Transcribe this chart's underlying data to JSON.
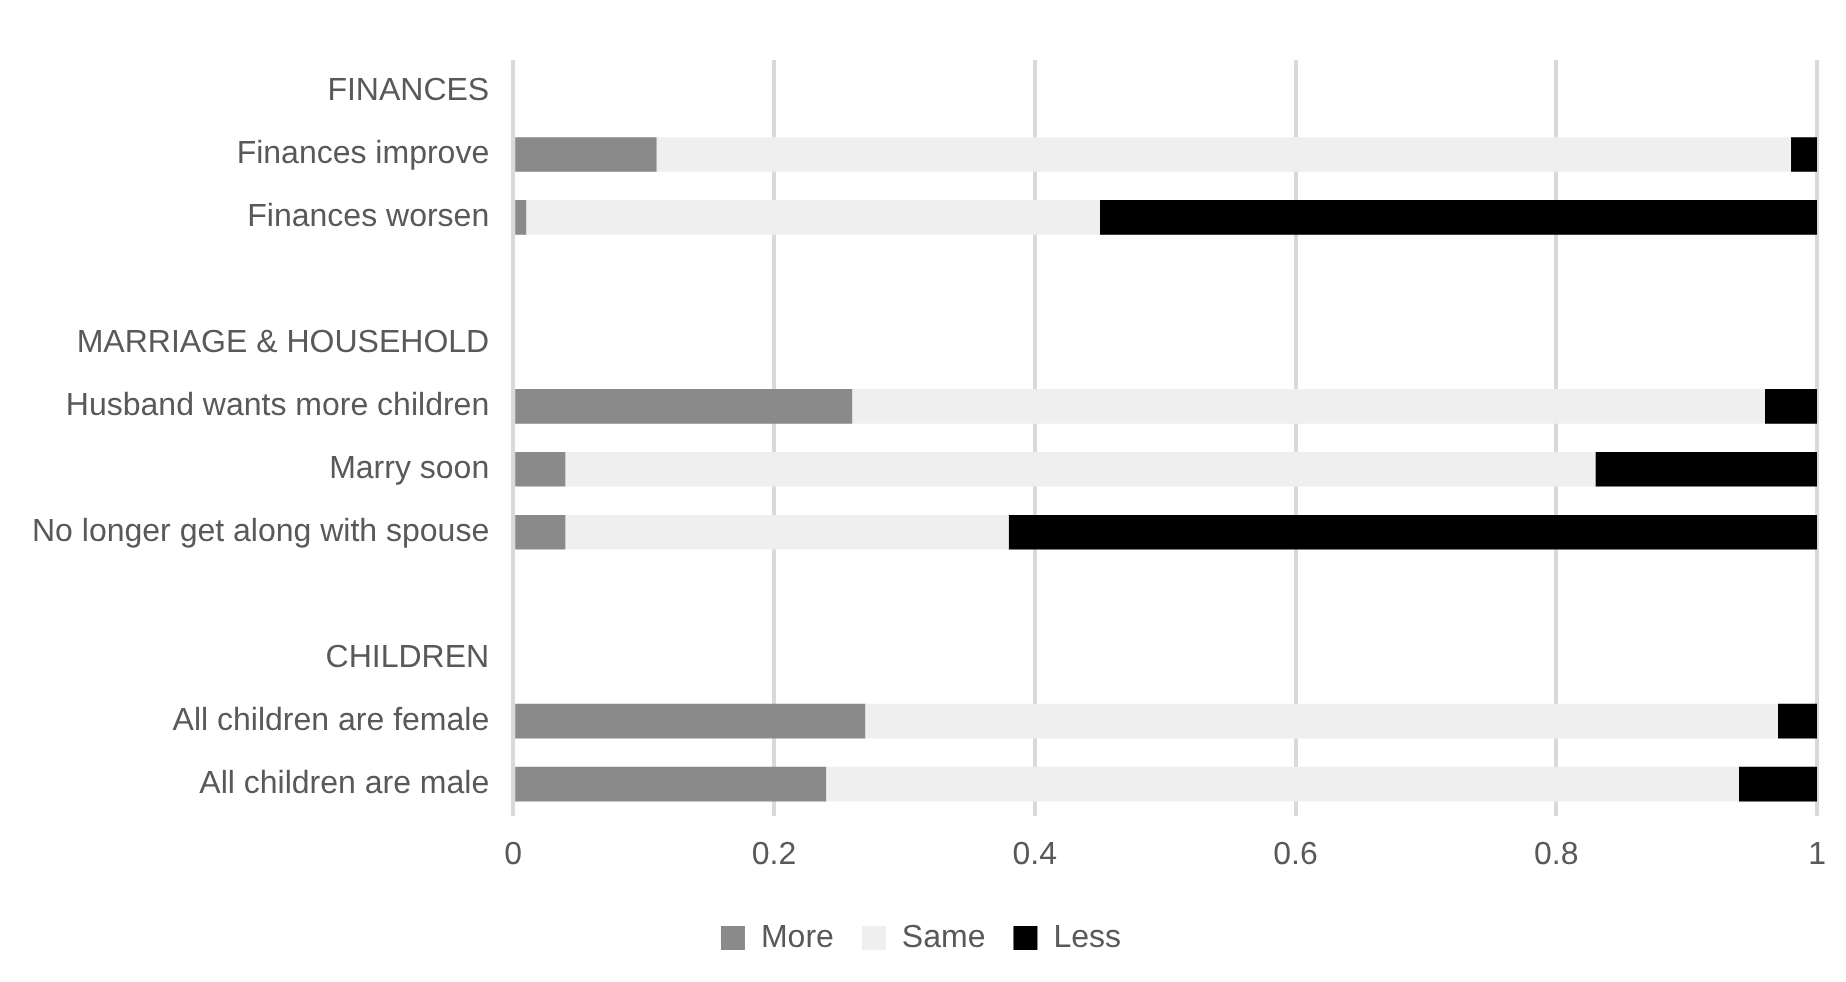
{
  "chart_data": {
    "type": "bar",
    "orientation": "horizontal",
    "stacked": true,
    "categories": [
      "FINANCES",
      "Finances improve",
      "Finances worsen",
      null,
      "MARRIAGE & HOUSEHOLD",
      "Husband wants more children",
      "Marry soon",
      "No longer get along with spouse",
      null,
      "CHILDREN",
      "All children are female",
      "All children are male"
    ],
    "series": [
      {
        "name": "More",
        "color": "#8a8a8a",
        "values": [
          null,
          0.11,
          0.01,
          null,
          null,
          0.26,
          0.04,
          0.04,
          null,
          null,
          0.27,
          0.24
        ]
      },
      {
        "name": "Same",
        "color": "#efefef",
        "values": [
          null,
          0.87,
          0.44,
          null,
          null,
          0.7,
          0.79,
          0.34,
          null,
          null,
          0.7,
          0.7
        ]
      },
      {
        "name": "Less",
        "color": "#000000",
        "values": [
          null,
          0.02,
          0.55,
          null,
          null,
          0.04,
          0.17,
          0.62,
          null,
          null,
          0.03,
          0.06
        ]
      }
    ],
    "xlim": [
      0,
      1
    ],
    "xticks": [
      0,
      0.2,
      0.4,
      0.6,
      0.8,
      1
    ],
    "grid": "x",
    "legend": "bottom"
  }
}
